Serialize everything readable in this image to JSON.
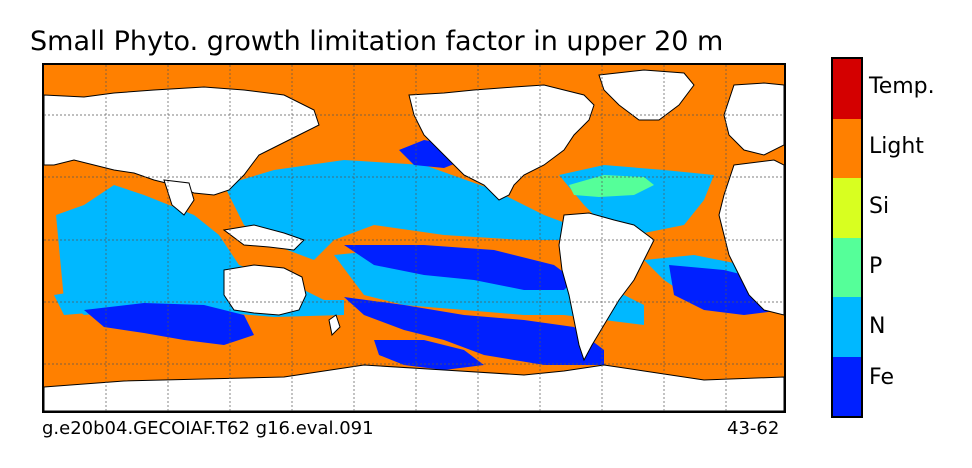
{
  "title": "Small Phyto. growth limitation factor in upper 20 m",
  "footer": {
    "left": "g.e20b04.GECOIAF.T62 g16.eval.091",
    "right": "43-62"
  },
  "legend": {
    "categories": [
      {
        "label": "Temp.",
        "color": "#d40000"
      },
      {
        "label": "Light",
        "color": "#ff8000"
      },
      {
        "label": "Si",
        "color": "#d8ff20"
      },
      {
        "label": "P",
        "color": "#55ff99"
      },
      {
        "label": "N",
        "color": "#00b8ff"
      },
      {
        "label": "Fe",
        "color": "#0020ff"
      }
    ]
  },
  "map": {
    "land_color": "#ffffff",
    "gridlines": true,
    "grid_style": "dotted"
  }
}
